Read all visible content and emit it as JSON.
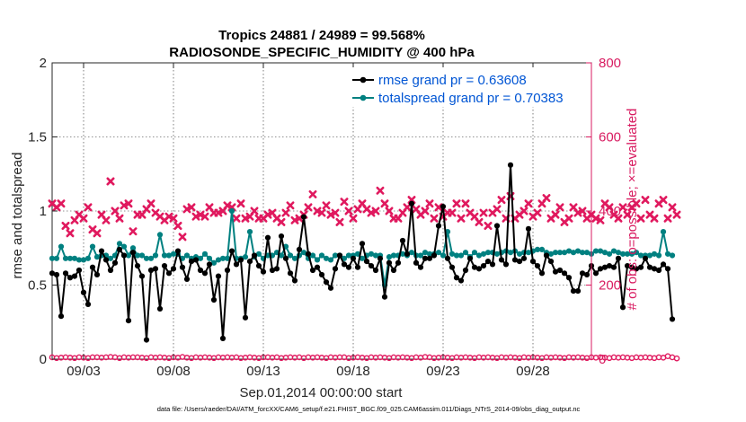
{
  "colors": {
    "rmse": "#000000",
    "spread": "#008080",
    "obs": "#e0195e",
    "axis_right": "#d81b60",
    "legend_text": "#0055d4"
  },
  "chart_data": {
    "type": "line",
    "title_line1": "Tropics 24881 / 24989 = 99.568%",
    "title_line2": "RADIOSONDE_SPECIFIC_HUMIDITY @ 400 hPa",
    "xlabel": "Sep.01,2014 00:00:00 start",
    "ylabel_left": "rmse and totalspread",
    "ylabel_right": "# of obs: o=possible; ×=evaluated",
    "footer": "data file: /Users/raeder/DAI/ATM_forcXX/CAM6_setup/f.e21.FHIST_BGC.f09_025.CAM6assim.011/Diags_NTrS_2014-09/obs_diag_output.nc",
    "xlim": [
      1.25,
      31.25
    ],
    "ylim_left": [
      0,
      2
    ],
    "ylim_right": [
      0,
      800
    ],
    "x_ticks": [
      3,
      8,
      13,
      18,
      23,
      28
    ],
    "x_tick_labels": [
      "09/03",
      "09/08",
      "09/13",
      "09/18",
      "09/23",
      "09/28"
    ],
    "y_left_ticks": [
      0,
      0.5,
      1,
      1.5,
      2
    ],
    "y_left_tick_labels": [
      "0",
      "0.5",
      "1",
      "1.5",
      "2"
    ],
    "y_right_ticks": [
      0,
      200,
      400,
      600,
      800
    ],
    "y_right_tick_labels": [
      "0",
      "200",
      "400",
      "600",
      "800"
    ],
    "x_start": 1.25,
    "x_step": 0.25,
    "series": [
      {
        "name": "rmse",
        "label": "rmse grand pr = 0.63608",
        "values": [
          0.58,
          0.57,
          0.29,
          0.58,
          0.55,
          0.56,
          0.6,
          0.45,
          0.37,
          0.62,
          0.57,
          0.73,
          0.67,
          0.6,
          0.65,
          0.74,
          0.7,
          0.26,
          0.72,
          0.63,
          0.56,
          0.13,
          0.6,
          0.61,
          0.34,
          0.63,
          0.58,
          0.61,
          0.73,
          0.62,
          0.54,
          0.66,
          0.67,
          0.6,
          0.58,
          0.64,
          0.4,
          0.56,
          0.14,
          0.6,
          0.73,
          0.64,
          0.67,
          0.28,
          0.66,
          0.7,
          0.63,
          0.59,
          0.82,
          0.6,
          0.61,
          0.83,
          0.68,
          0.58,
          0.53,
          0.74,
          0.96,
          0.71,
          0.6,
          0.62,
          0.57,
          0.52,
          0.48,
          0.61,
          0.7,
          0.64,
          0.62,
          0.68,
          0.62,
          0.78,
          0.66,
          0.63,
          0.6,
          0.68,
          0.42,
          0.65,
          0.6,
          0.65,
          0.8,
          0.71,
          1.05,
          0.65,
          0.62,
          0.68,
          0.68,
          0.7,
          0.9,
          1.03,
          0.68,
          0.62,
          0.55,
          0.53,
          0.6,
          0.68,
          0.62,
          0.61,
          0.63,
          0.66,
          0.64,
          0.9,
          0.67,
          0.64,
          1.31,
          0.67,
          0.66,
          0.68,
          0.88,
          0.66,
          0.63,
          0.58,
          0.7,
          0.66,
          0.59,
          0.6,
          0.58,
          0.55,
          0.46,
          0.46,
          0.58,
          0.57,
          0.63,
          0.58,
          0.61,
          0.62,
          0.63,
          0.62,
          0.68,
          0.35,
          0.63,
          0.62,
          0.61,
          0.62,
          0.68,
          0.62,
          0.61,
          0.6,
          0.64,
          0.61,
          0.27
        ]
      },
      {
        "name": "totalspread",
        "label": "totalspread grand pr = 0.70383",
        "values": [
          0.68,
          0.68,
          0.76,
          0.68,
          0.68,
          0.68,
          0.67,
          0.67,
          0.68,
          0.76,
          0.69,
          0.7,
          0.7,
          0.68,
          0.7,
          0.78,
          0.76,
          0.7,
          0.75,
          0.7,
          0.7,
          0.68,
          0.68,
          0.7,
          0.84,
          0.7,
          0.7,
          0.71,
          0.71,
          0.68,
          0.7,
          0.68,
          0.69,
          0.68,
          0.71,
          0.68,
          0.65,
          0.67,
          0.68,
          0.68,
          1.0,
          0.68,
          0.68,
          0.69,
          0.86,
          0.69,
          0.71,
          0.68,
          0.7,
          0.7,
          0.72,
          0.7,
          0.76,
          0.7,
          0.68,
          0.7,
          0.72,
          0.68,
          0.7,
          0.67,
          0.7,
          0.68,
          0.67,
          0.7,
          0.7,
          0.68,
          0.7,
          0.7,
          0.71,
          0.68,
          0.7,
          0.71,
          0.7,
          0.7,
          0.5,
          0.69,
          0.7,
          0.7,
          0.71,
          0.7,
          0.72,
          0.7,
          0.7,
          0.72,
          0.71,
          0.71,
          0.72,
          0.7,
          0.86,
          0.71,
          0.7,
          0.7,
          0.72,
          0.69,
          0.72,
          0.7,
          0.71,
          0.72,
          0.72,
          0.71,
          0.72,
          0.73,
          0.72,
          0.73,
          0.71,
          0.72,
          0.72,
          0.73,
          0.74,
          0.74,
          0.72,
          0.71,
          0.72,
          0.72,
          0.72,
          0.73,
          0.72,
          0.73,
          0.72,
          0.72,
          0.71,
          0.73,
          0.73,
          0.72,
          0.71,
          0.73,
          0.72,
          0.71,
          0.71,
          0.71,
          0.72,
          0.7,
          0.7,
          0.7,
          0.71,
          0.7,
          0.86,
          0.71,
          0.7
        ]
      },
      {
        "name": "obs_possible",
        "axis": "right",
        "marker": "circle",
        "values": [
          5,
          3,
          4,
          5,
          4,
          3,
          5,
          4,
          3,
          5,
          5,
          4,
          5,
          6,
          5,
          3,
          5,
          4,
          5,
          5,
          4,
          3,
          5,
          4,
          5,
          4,
          3,
          5,
          4,
          6,
          4,
          3,
          5,
          4,
          5,
          4,
          3,
          5,
          4,
          5,
          4,
          5,
          3,
          4,
          5,
          4,
          3,
          5,
          5,
          4,
          5,
          3,
          4,
          5,
          4,
          5,
          3,
          5,
          4,
          5,
          4,
          3,
          5,
          4,
          5,
          5,
          3,
          4,
          5,
          4,
          3,
          5,
          4,
          5,
          4,
          3,
          5,
          4,
          5,
          4,
          3,
          5,
          4,
          6,
          5,
          3,
          4,
          5,
          4,
          3,
          5,
          4,
          5,
          4,
          3,
          5,
          4,
          5,
          4,
          3,
          5,
          4,
          5,
          4,
          3,
          5,
          4,
          5,
          4,
          3,
          5,
          4,
          5,
          4,
          3,
          5,
          4,
          5,
          4,
          3,
          5,
          4,
          5,
          4,
          3,
          5,
          4,
          5,
          4,
          3,
          5,
          4,
          5,
          4,
          3,
          5,
          4,
          8,
          5,
          2
        ]
      },
      {
        "name": "obs_evaluated",
        "axis": "right",
        "marker": "x",
        "values": [
          420,
          410,
          420,
          360,
          340,
          375,
          390,
          380,
          410,
          350,
          340,
          390,
          375,
          480,
          400,
          380,
          415,
          420,
          345,
          390,
          390,
          405,
          420,
          395,
          385,
          375,
          385,
          380,
          360,
          330,
          405,
          410,
          385,
          390,
          385,
          410,
          395,
          395,
          400,
          415,
          410,
          380,
          420,
          380,
          385,
          400,
          380,
          380,
          390,
          395,
          380,
          370,
          395,
          415,
          375,
          380,
          390,
          410,
          445,
          400,
          395,
          415,
          390,
          395,
          370,
          425,
          400,
          380,
          405,
          420,
          405,
          395,
          400,
          455,
          420,
          400,
          380,
          380,
          395,
          410,
          430,
          405,
          390,
          400,
          420,
          380,
          410,
          385,
          395,
          395,
          420,
          380,
          420,
          395,
          385,
          370,
          395,
          360,
          395,
          405,
          430,
          380,
          440,
          380,
          390,
          400,
          420,
          385,
          395,
          420,
          435,
          380,
          390,
          410,
          370,
          380,
          410,
          395,
          400,
          380,
          390,
          380,
          375,
          420,
          410,
          390,
          380,
          410,
          390,
          410,
          420,
          380,
          430,
          390,
          380,
          420,
          430,
          380,
          410,
          390
        ]
      }
    ]
  }
}
